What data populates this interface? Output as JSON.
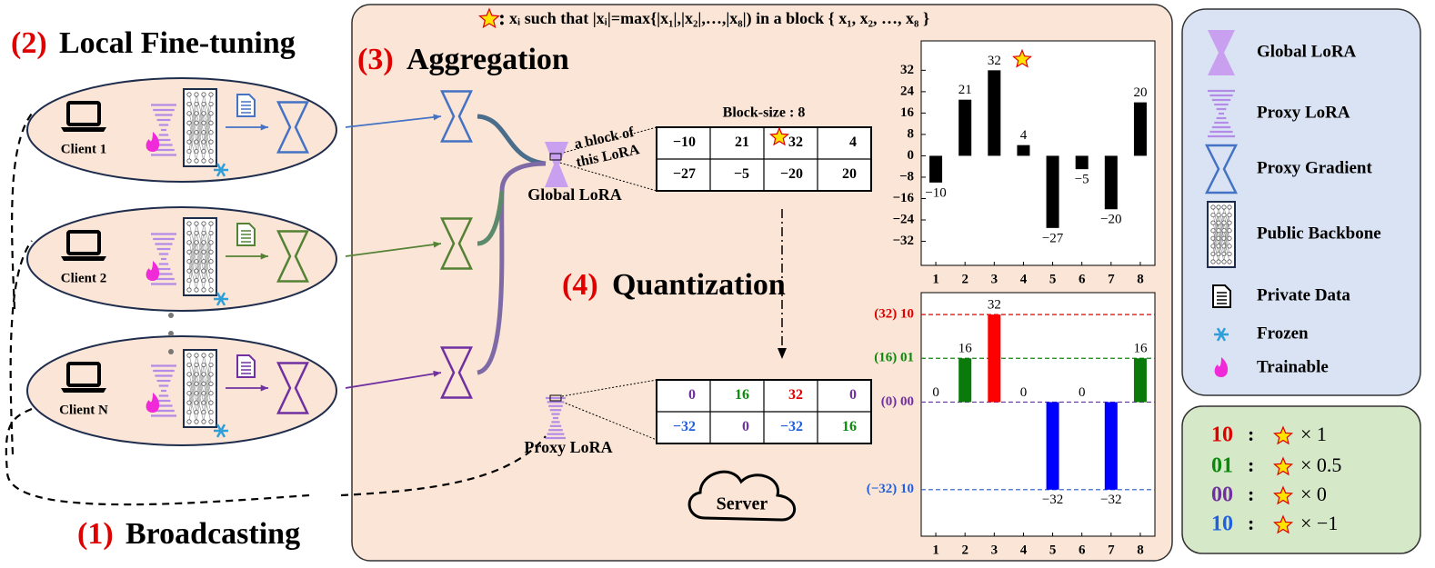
{
  "diagram": {
    "step2": {
      "number": "(2)",
      "title": "Local Fine-tuning"
    },
    "step1": {
      "number": "(1)",
      "title": "Broadcasting"
    },
    "step3": {
      "number": "(3)",
      "title": "Aggregation"
    },
    "step4": {
      "number": "(4)",
      "title": "Quantization"
    },
    "clients": [
      "Client 1",
      "Client 2",
      "Client N"
    ],
    "definition": "xᵢ such that |xᵢ|=max{|x₁|,|x₂|,…,|x₈|) in a block { x₁, x₂, …, x₈ }",
    "block_note": [
      "a block of",
      "this LoRA"
    ],
    "global_lora": "Global LoRA",
    "proxy_lora": "Proxy LoRA",
    "server": "Server",
    "block_size": "Block-size : 8",
    "block_table": {
      "rows": [
        [
          "−10",
          "21",
          "32",
          "4"
        ],
        [
          "−27",
          "−5",
          "−20",
          "20"
        ]
      ]
    },
    "quant_table": {
      "rows": [
        [
          "0",
          "16",
          "32",
          "0"
        ],
        [
          "−32",
          "0",
          "−32",
          "16"
        ]
      ],
      "colors": [
        [
          "#7030a0",
          "#0a8a0a",
          "#e00000",
          "#7030a0"
        ],
        [
          "#1f5fe0",
          "#7030a0",
          "#1f5fe0",
          "#0a8a0a"
        ]
      ]
    },
    "legend": [
      "Global LoRA",
      "Proxy LoRA",
      "Proxy Gradient",
      "Public Backbone",
      "Private Data",
      "Frozen",
      "Trainable"
    ],
    "codes": [
      {
        "code": "10",
        "color": "#e00000",
        "factor": "× 1"
      },
      {
        "code": "01",
        "color": "#0a8a0a",
        "factor": "× 0.5"
      },
      {
        "code": "00",
        "color": "#7030a0",
        "factor": "× 0"
      },
      {
        "code": "10",
        "color": "#1f5fe0",
        "factor": "× −1"
      }
    ]
  },
  "chart_data": [
    {
      "type": "bar",
      "categories": [
        "1",
        "2",
        "3",
        "4",
        "5",
        "6",
        "7",
        "8"
      ],
      "values": [
        -10,
        21,
        32,
        4,
        -27,
        -5,
        -20,
        20
      ],
      "value_labels": [
        "−10",
        "21",
        "32",
        "4",
        "−27",
        "−5",
        "−20",
        "20"
      ],
      "color": "#000000",
      "ylim": [
        -41,
        43
      ],
      "yticks": [
        32,
        24,
        16,
        8,
        0,
        {
          "value": -8,
          "label": "−8"
        },
        {
          "value": -16,
          "label": "−16"
        },
        {
          "value": -24,
          "label": "−24"
        },
        {
          "value": -32,
          "label": "−32"
        }
      ],
      "grid": false
    },
    {
      "type": "bar",
      "categories": [
        "1",
        "2",
        "3",
        "4",
        "5",
        "6",
        "7",
        "8"
      ],
      "values": [
        0,
        16,
        32,
        0,
        -32,
        0,
        -32,
        16
      ],
      "value_labels": [
        "0",
        "16",
        "32",
        "0",
        "−32",
        "0",
        "−32",
        "16"
      ],
      "colors": [
        "#000000",
        "#0a7a0a",
        "#ff0000",
        "#000000",
        "#0000ff",
        "#000000",
        "#0000ff",
        "#0a7a0a"
      ],
      "ylim": [
        -49,
        40
      ],
      "yticks": [
        {
          "value": 32,
          "label": "(32) 10"
        },
        {
          "value": 16,
          "label": "(16) 01"
        },
        {
          "value": 0,
          "label": "(0) 00"
        },
        {
          "value": -32,
          "label": "(−32) 10"
        }
      ],
      "ytick_colors": [
        "#e00000",
        "#0a8a0a",
        "#7030a0",
        "#1f5fe0"
      ],
      "grid": "dashed"
    }
  ]
}
